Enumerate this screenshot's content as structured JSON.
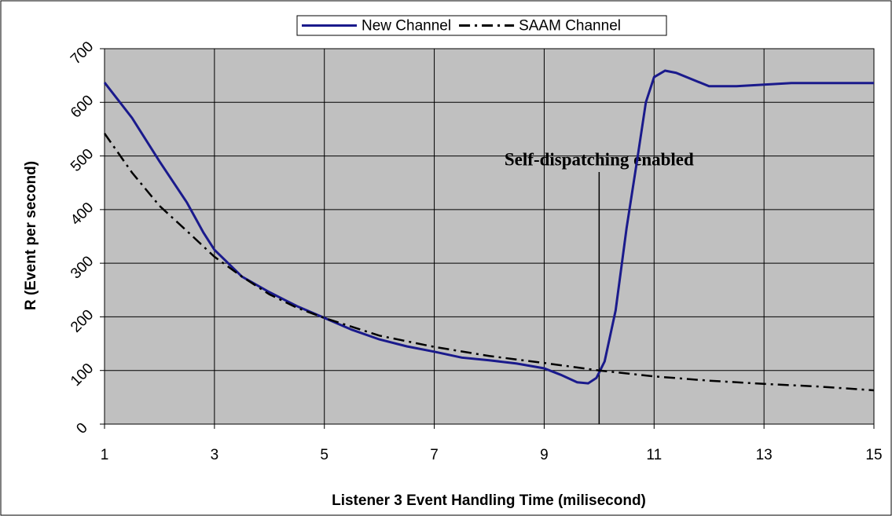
{
  "chart_data": {
    "type": "line",
    "xlabel": "Listener 3 Event Handling Time (milisecond)",
    "ylabel": "R (Event per second)",
    "xlim": [
      1,
      15
    ],
    "xticks": [
      1,
      3,
      5,
      7,
      9,
      11,
      13,
      15
    ],
    "ylim": [
      0,
      700
    ],
    "yticks": [
      0,
      100,
      200,
      300,
      400,
      500,
      600,
      700
    ],
    "grid": true,
    "legend": "top",
    "annotations": [
      {
        "text": "Self-dispatching enabled",
        "x": 10,
        "y": 470
      }
    ],
    "series": [
      {
        "name": "New Channel",
        "color": "#1a1a8c",
        "dash": "solid",
        "x": [
          1,
          1.5,
          2,
          2.5,
          2.8,
          3,
          3.5,
          4,
          4.5,
          5,
          5.5,
          6,
          6.5,
          7,
          7.5,
          8,
          8.5,
          9,
          9.3,
          9.6,
          9.8,
          9.95,
          10.1,
          10.3,
          10.5,
          10.7,
          10.85,
          11,
          11.2,
          11.4,
          12,
          12.5,
          13,
          13.5,
          15
        ],
        "values": [
          637,
          571,
          490,
          413,
          357,
          325,
          275,
          246,
          220,
          198,
          176,
          158,
          145,
          135,
          124,
          119,
          113,
          104,
          92,
          78,
          76,
          86,
          117,
          212,
          366,
          498,
          600,
          647,
          659,
          655,
          630,
          630,
          633,
          636,
          636
        ]
      },
      {
        "name": "SAAM Channel",
        "color": "#000000",
        "dash": "dashdot",
        "x": [
          1,
          1.5,
          2,
          2.5,
          3,
          3.5,
          4,
          4.5,
          5,
          6,
          7,
          8,
          9,
          10,
          11,
          12,
          13,
          14,
          15
        ],
        "values": [
          542,
          469,
          407,
          360,
          312,
          275,
          242,
          217,
          198,
          165,
          144,
          127,
          114,
          100,
          89,
          81,
          75,
          70,
          63
        ]
      }
    ]
  }
}
